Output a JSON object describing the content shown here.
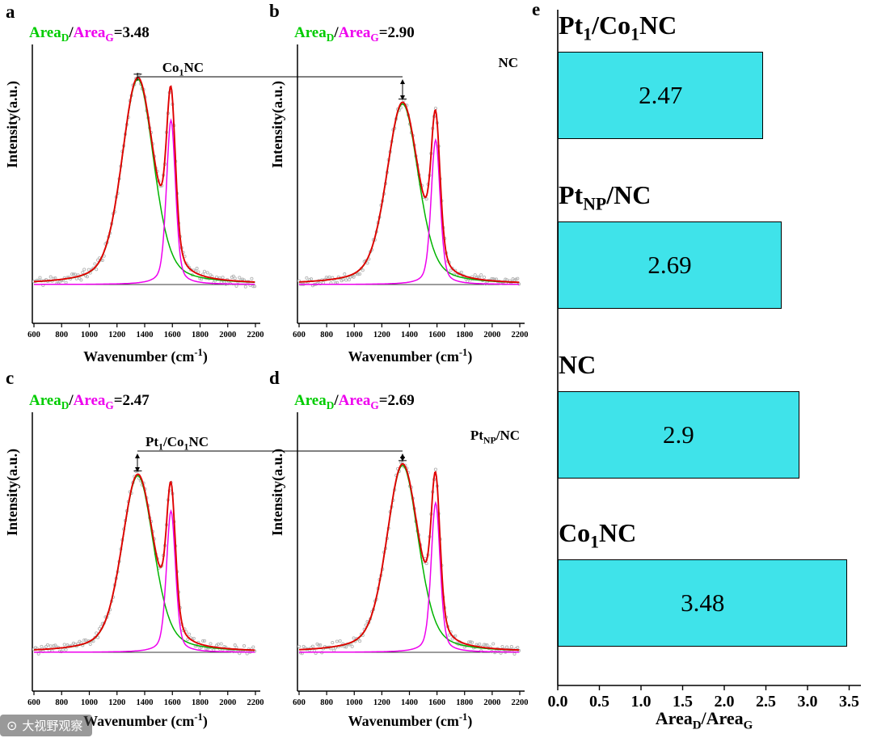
{
  "colors": {
    "d_band": "#00B400",
    "d_label": "#00CC00",
    "g_band": "#EE00EE",
    "cumulative_fit": "#E00000",
    "raw_data": "#B5B5B5",
    "bar_fill": "#3FE3EA",
    "axis": "#000000"
  },
  "panels": [
    {
      "letter": "a",
      "sample": "Co_{1}NC",
      "area_d": "Area_{D}",
      "slash": "/",
      "area_g": "Area_{G}",
      "equals": "=3.48",
      "xlabel": "Wavenumber (cm^{-1})",
      "ylabel": "Intensity(a.u.)"
    },
    {
      "letter": "b",
      "sample": "NC",
      "area_d": "Area_{D}",
      "slash": "/",
      "area_g": "Area_{G}",
      "equals": "=2.90",
      "xlabel": "Wavenumber (cm^{-1})",
      "ylabel": "Intensity(a.u.)"
    },
    {
      "letter": "c",
      "sample": "Pt_{1}/Co_{1}NC",
      "area_d": "Area_{D}",
      "slash": "/",
      "area_g": "Area_{G}",
      "equals": "=2.47",
      "xlabel": "Wavenumber (cm^{-1})",
      "ylabel": "Intensity(a.u.)"
    },
    {
      "letter": "d",
      "sample": "Pt_{NP}/NC",
      "area_d": "Area_{D}",
      "slash": "/",
      "area_g": "Area_{G}",
      "equals": "=2.69",
      "xlabel": "Wavenumber (cm^{-1})",
      "ylabel": "Intensity(a.u.)"
    }
  ],
  "bar_panel": {
    "letter": "e",
    "rows": [
      {
        "label": "Pt_{1}/Co_{1}NC",
        "value": "2.47"
      },
      {
        "label": "Pt_{NP}/NC",
        "value": "2.69"
      },
      {
        "label": "NC",
        "value": "2.9"
      },
      {
        "label": "Co_{1}NC",
        "value": "3.48"
      }
    ],
    "xlabel": "Area_{D}/Area_{G}",
    "x_ticks": [
      "0.0",
      "0.5",
      "1.0",
      "1.5",
      "2.0",
      "2.5",
      "3.0",
      "3.5"
    ]
  },
  "watermark": {
    "logo": "⊙",
    "text": "大视野观察"
  },
  "chart_data": [
    {
      "type": "line",
      "panel": "a",
      "sample": "Co1NC",
      "title": "AreaD/AreaG=3.48",
      "area_ratio": 3.48,
      "xlabel": "Wavenumber (cm-1)",
      "ylabel": "Intensity (a.u.)",
      "x_range": [
        600,
        2200
      ],
      "x_ticks": [
        600,
        800,
        1000,
        1200,
        1400,
        1600,
        1800,
        2000,
        2200
      ],
      "peaks": [
        {
          "name": "D band fit",
          "color": "#00B400",
          "center": 1350
        },
        {
          "name": "G band fit",
          "color": "#EE00EE",
          "center": 1590
        }
      ],
      "series_colors": {
        "cumulative_fit": "#E00000",
        "raw_data": "#B5B5B5"
      }
    },
    {
      "type": "line",
      "panel": "b",
      "sample": "NC",
      "title": "AreaD/AreaG=2.90",
      "area_ratio": 2.9,
      "xlabel": "Wavenumber (cm-1)",
      "ylabel": "Intensity (a.u.)",
      "x_range": [
        600,
        2200
      ],
      "x_ticks": [
        600,
        800,
        1000,
        1200,
        1400,
        1600,
        1800,
        2000,
        2200
      ],
      "peaks": [
        {
          "name": "D band fit",
          "color": "#00B400",
          "center": 1350
        },
        {
          "name": "G band fit",
          "color": "#EE00EE",
          "center": 1590
        }
      ],
      "series_colors": {
        "cumulative_fit": "#E00000",
        "raw_data": "#B5B5B5"
      }
    },
    {
      "type": "line",
      "panel": "c",
      "sample": "Pt1/Co1NC",
      "title": "AreaD/AreaG=2.47",
      "area_ratio": 2.47,
      "xlabel": "Wavenumber (cm-1)",
      "ylabel": "Intensity (a.u.)",
      "x_range": [
        600,
        2200
      ],
      "x_ticks": [
        600,
        800,
        1000,
        1200,
        1400,
        1600,
        1800,
        2000,
        2200
      ],
      "peaks": [
        {
          "name": "D band fit",
          "color": "#00B400",
          "center": 1350
        },
        {
          "name": "G band fit",
          "color": "#EE00EE",
          "center": 1590
        }
      ],
      "series_colors": {
        "cumulative_fit": "#E00000",
        "raw_data": "#B5B5B5"
      }
    },
    {
      "type": "line",
      "panel": "d",
      "sample": "PtNP/NC",
      "title": "AreaD/AreaG=2.69",
      "area_ratio": 2.69,
      "xlabel": "Wavenumber (cm-1)",
      "ylabel": "Intensity (a.u.)",
      "x_range": [
        600,
        2200
      ],
      "x_ticks": [
        600,
        800,
        1000,
        1200,
        1400,
        1600,
        1800,
        2000,
        2200
      ],
      "peaks": [
        {
          "name": "D band fit",
          "color": "#00B400",
          "center": 1350
        },
        {
          "name": "G band fit",
          "color": "#EE00EE",
          "center": 1590
        }
      ],
      "series_colors": {
        "cumulative_fit": "#E00000",
        "raw_data": "#B5B5B5"
      }
    },
    {
      "type": "bar",
      "panel": "e",
      "orientation": "horizontal",
      "categories": [
        "Pt1/Co1NC",
        "PtNP/NC",
        "NC",
        "Co1NC"
      ],
      "values": [
        2.47,
        2.69,
        2.9,
        3.48
      ],
      "value_labels": [
        "2.47",
        "2.69",
        "2.9",
        "3.48"
      ],
      "xlabel": "AreaD/AreaG",
      "xlim": [
        0,
        3.7
      ],
      "x_ticks": [
        0.0,
        0.5,
        1.0,
        1.5,
        2.0,
        2.5,
        3.0,
        3.5
      ],
      "bar_color": "#3FE3EA",
      "legend": "none",
      "grid": false
    }
  ]
}
